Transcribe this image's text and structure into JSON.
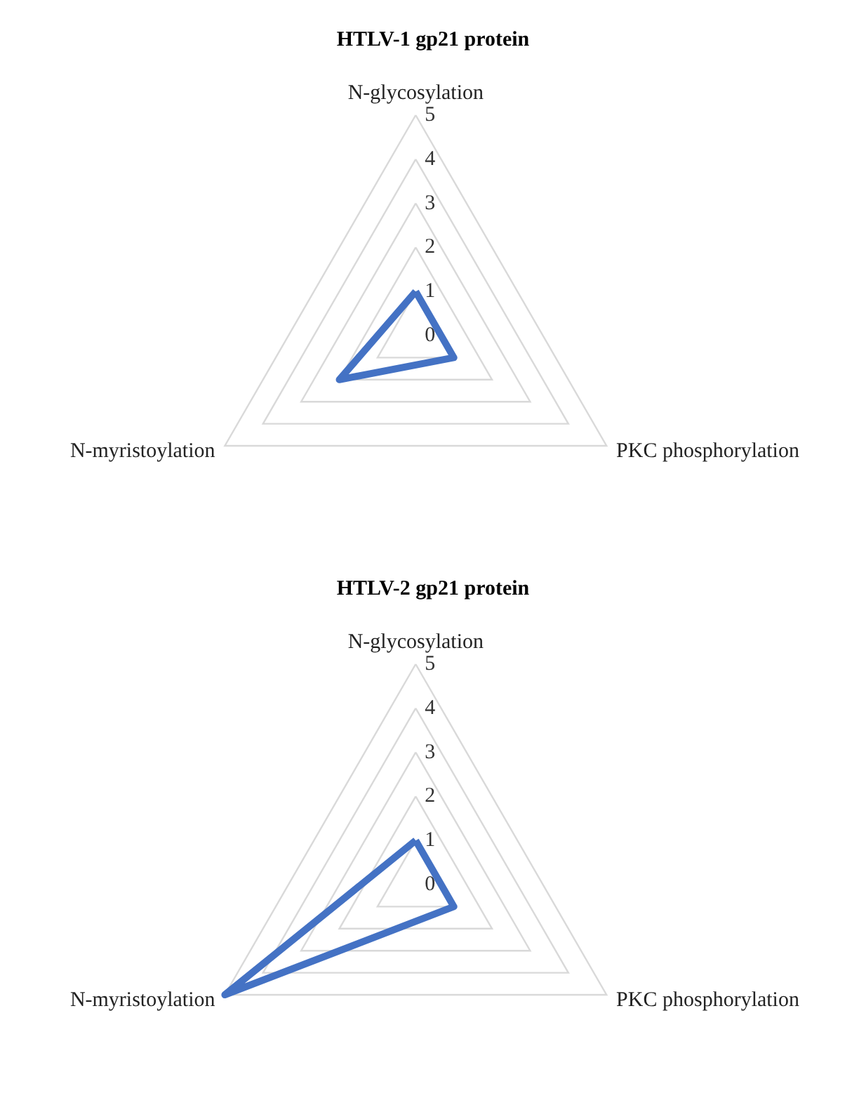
{
  "chart_data": [
    {
      "type": "radar",
      "title": "HTLV-1 gp21 protein",
      "categories": [
        "N-glycosylation",
        "PKC phosphorylation",
        "N-myristoylation"
      ],
      "series": [
        {
          "color": "#4472c4",
          "values": [
            1,
            1,
            2
          ]
        }
      ],
      "ylim": [
        0,
        5
      ],
      "yticks": [
        0,
        1,
        2,
        3,
        4,
        5
      ],
      "grid": true
    },
    {
      "type": "radar",
      "title": "HTLV-2 gp21 protein",
      "categories": [
        "N-glycosylation",
        "PKC phosphorylation",
        "N-myristoylation"
      ],
      "series": [
        {
          "color": "#4472c4",
          "values": [
            1,
            1,
            5
          ]
        }
      ],
      "ylim": [
        0,
        5
      ],
      "yticks": [
        0,
        1,
        2,
        3,
        4,
        5
      ],
      "grid": true
    }
  ]
}
